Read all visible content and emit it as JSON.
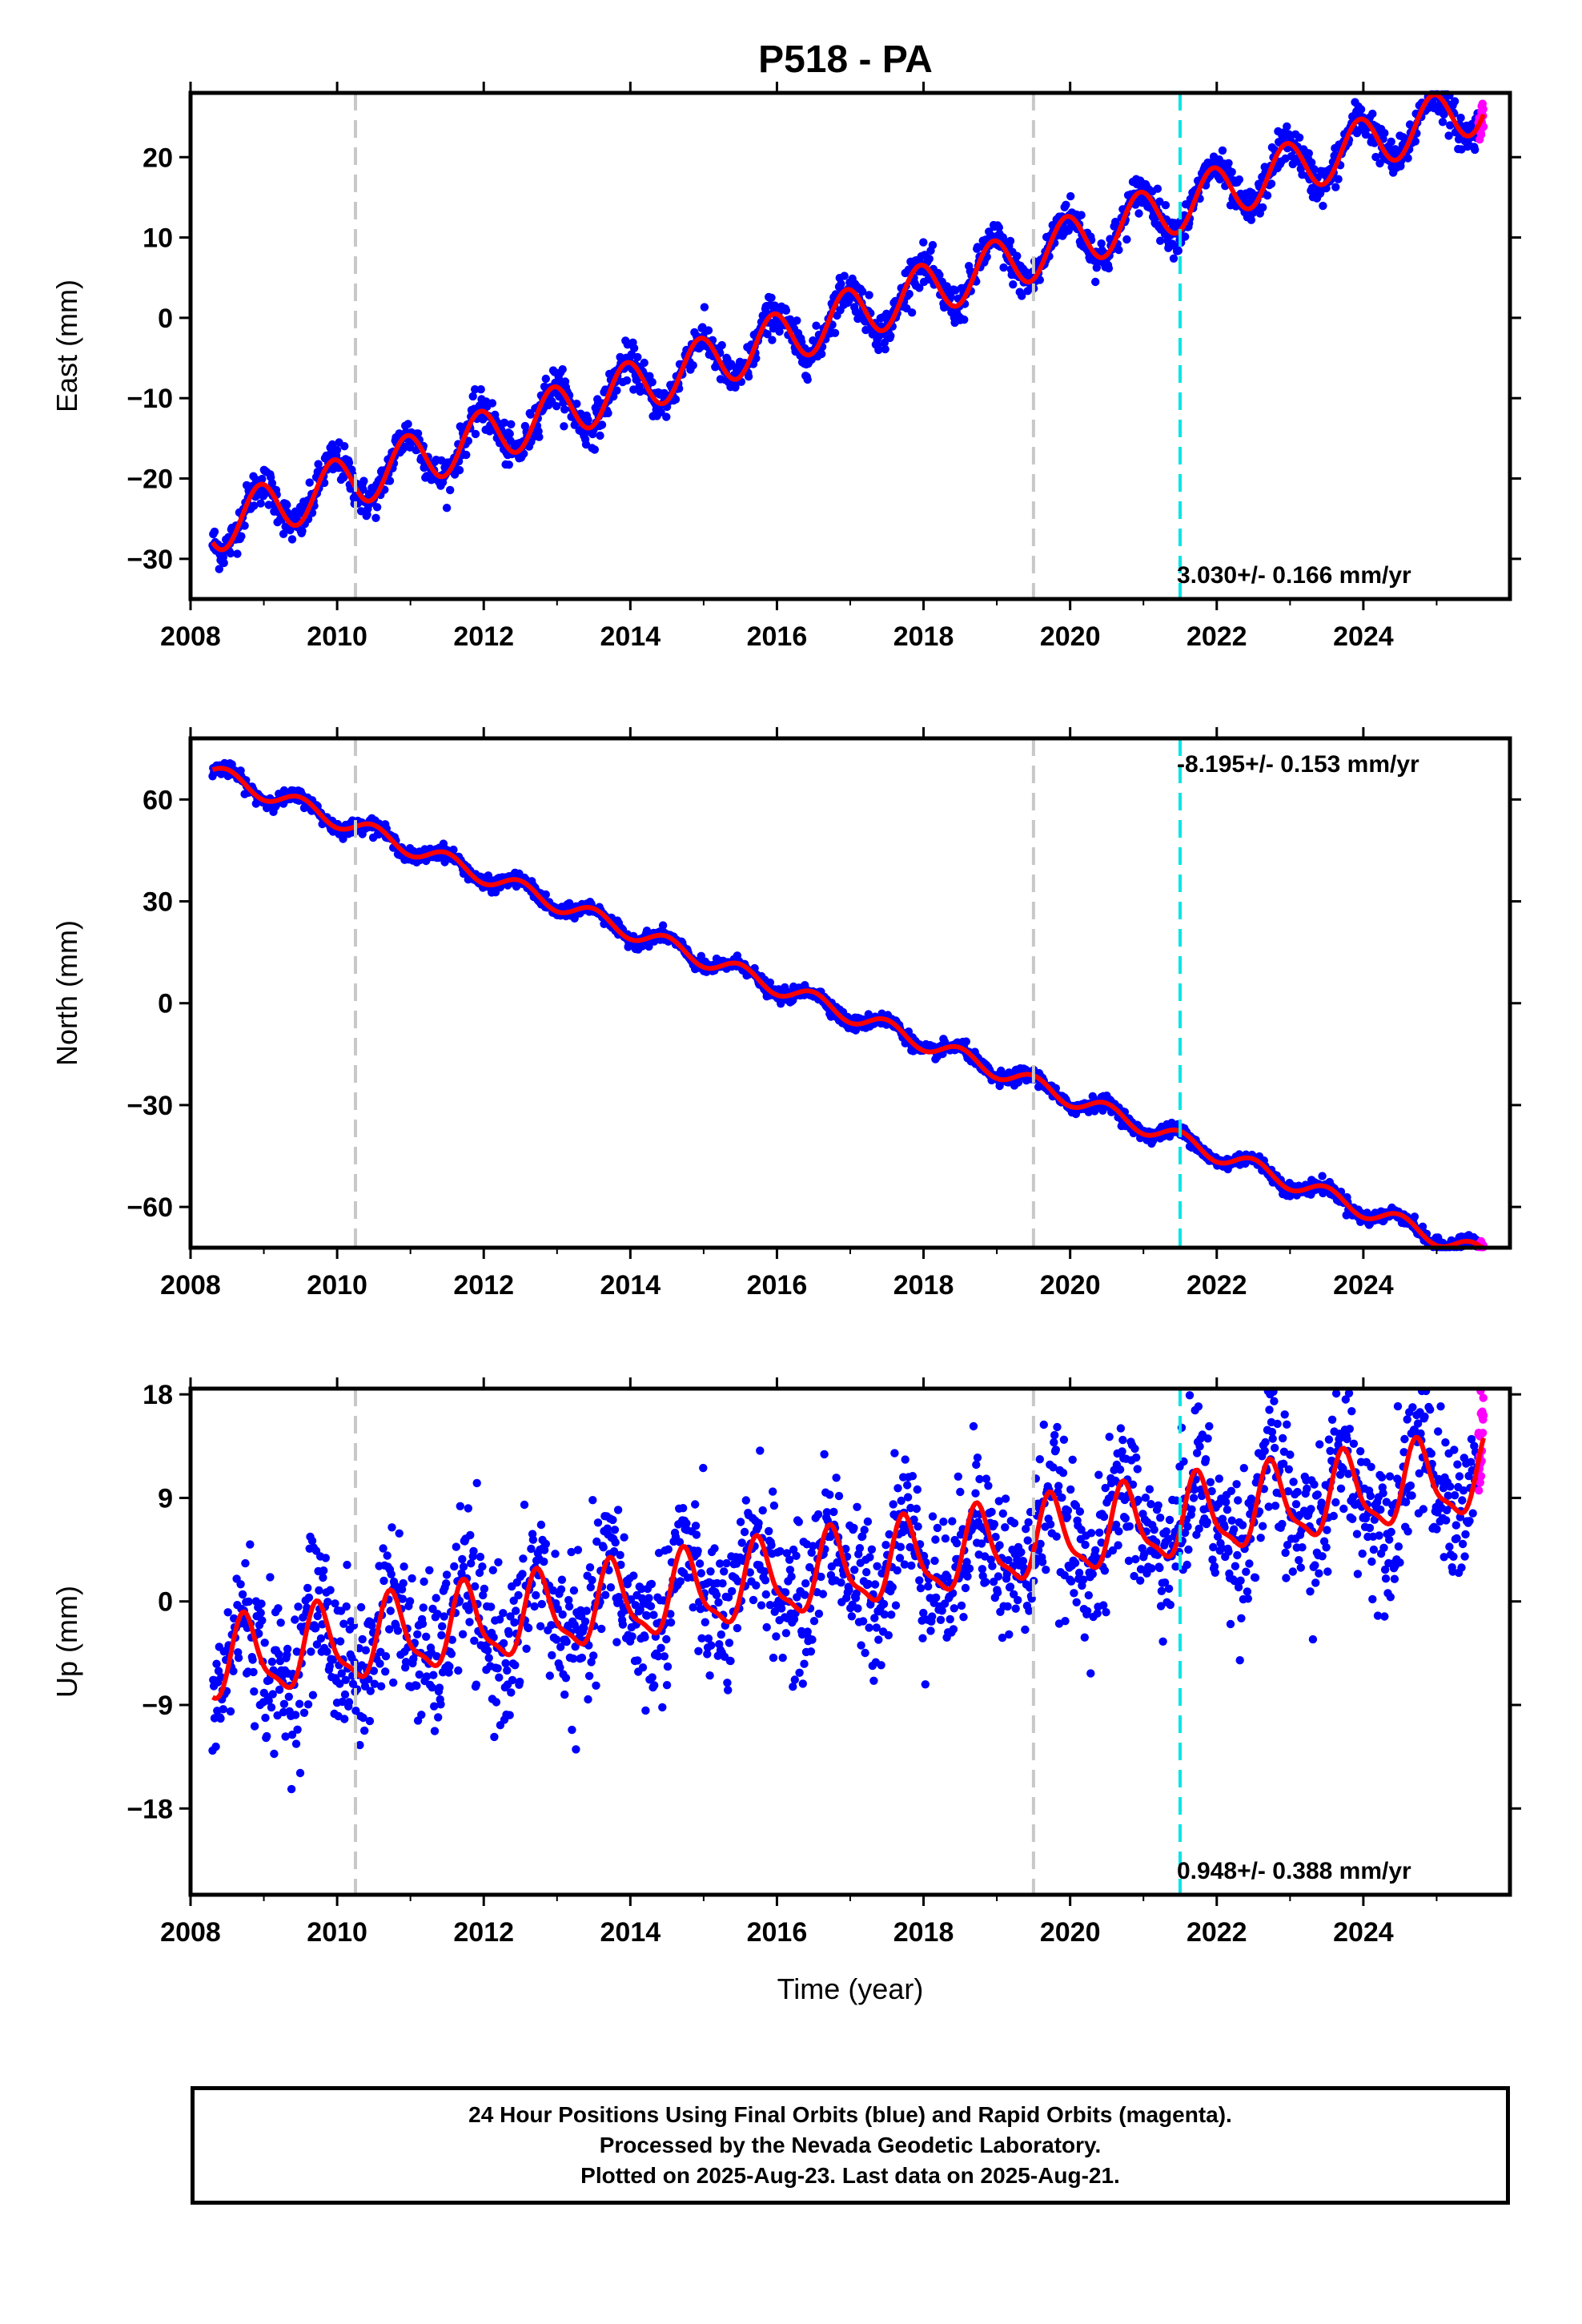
{
  "title": "P518 - PA",
  "footer": {
    "line1": "24 Hour Positions Using Final Orbits (blue) and Rapid Orbits (magenta).",
    "line2": "Processed by the Nevada Geodetic Laboratory.",
    "line3": "Plotted on 2025-Aug-23. Last data on 2025-Aug-21."
  },
  "colors": {
    "final_orbits": "#0000ff",
    "rapid_orbits": "#ff00ff",
    "model_fit": "#ff0000",
    "equipment_change": "#c8c8c8",
    "earthquake": "#00e5e5"
  },
  "chart_data": [
    {
      "type": "scatter",
      "component": "east",
      "ylabel": "East (mm)",
      "xlabel": "",
      "xlim": [
        2008.0,
        2026.0
      ],
      "ylim": [
        -35,
        28
      ],
      "xticks": [
        "2008",
        "2010",
        "2012",
        "2014",
        "2016",
        "2018",
        "2020",
        "2022",
        "2024"
      ],
      "yticks": [
        "−30",
        "−20",
        "−10",
        "0",
        "10",
        "20"
      ],
      "ytick_values": [
        -30,
        -20,
        -10,
        0,
        10,
        20
      ],
      "rate_label": "3.030+/- 0.166 mm/yr",
      "rate_position": "bottom-right",
      "trend": {
        "rate": 3.03,
        "value_at_2008.3": -26.0,
        "annual_amplitude": 3.3,
        "annual_peak_phase": 0.95,
        "noise_sd": 1.2
      },
      "model_breaks": [
        2019.5,
        2021.5
      ],
      "vlines_gray": [
        2010.25,
        2019.5
      ],
      "vlines_cyan": [
        2021.5
      ],
      "data_span": [
        2008.3,
        2025.64
      ],
      "rapid_span": [
        2025.57,
        2025.64
      ]
    },
    {
      "type": "scatter",
      "component": "north",
      "ylabel": "North (mm)",
      "xlabel": "",
      "xlim": [
        2008.0,
        2026.0
      ],
      "ylim": [
        -72,
        78
      ],
      "xticks": [
        "2008",
        "2010",
        "2012",
        "2014",
        "2016",
        "2018",
        "2020",
        "2022",
        "2024"
      ],
      "yticks": [
        "−60",
        "−30",
        "0",
        "30",
        "60"
      ],
      "ytick_values": [
        -60,
        -30,
        0,
        30,
        60
      ],
      "rate_label": "-8.195+/- 0.153 mm/yr",
      "rate_position": "top-right",
      "trend": {
        "rate": -8.195,
        "value_at_2008.3": 68.0,
        "annual_amplitude": 2.5,
        "annual_peak_phase": 0.5,
        "noise_sd": 1.0
      },
      "model_breaks": [
        2019.5,
        2021.5
      ],
      "vlines_gray": [
        2010.25,
        2019.5
      ],
      "vlines_cyan": [
        2021.5
      ],
      "data_span": [
        2008.3,
        2025.64
      ],
      "rapid_span": [
        2025.57,
        2025.64
      ]
    },
    {
      "type": "scatter",
      "component": "up",
      "ylabel": "Up (mm)",
      "xlabel": "Time (year)",
      "xlim": [
        2008.0,
        2026.0
      ],
      "ylim": [
        -25.5,
        18.5
      ],
      "xticks": [
        "2008",
        "2010",
        "2012",
        "2014",
        "2016",
        "2018",
        "2020",
        "2022",
        "2024"
      ],
      "yticks": [
        "−18",
        "−9",
        "0",
        "9",
        "18"
      ],
      "ytick_values": [
        -18,
        -9,
        0,
        9,
        18
      ],
      "rate_label": "0.948+/- 0.388 mm/yr",
      "rate_position": "bottom-right",
      "trend": {
        "rate": 0.948,
        "value_at_2008.3": -5.5,
        "annual_amplitude": 3.3,
        "annual_peak_phase": 0.75,
        "noise_sd": 3.2
      },
      "model_breaks": [
        2019.5,
        2021.5
      ],
      "vlines_gray": [
        2010.25,
        2019.5
      ],
      "vlines_cyan": [
        2021.5
      ],
      "data_span": [
        2008.3,
        2025.64
      ],
      "rapid_span": [
        2025.57,
        2025.64
      ]
    }
  ]
}
